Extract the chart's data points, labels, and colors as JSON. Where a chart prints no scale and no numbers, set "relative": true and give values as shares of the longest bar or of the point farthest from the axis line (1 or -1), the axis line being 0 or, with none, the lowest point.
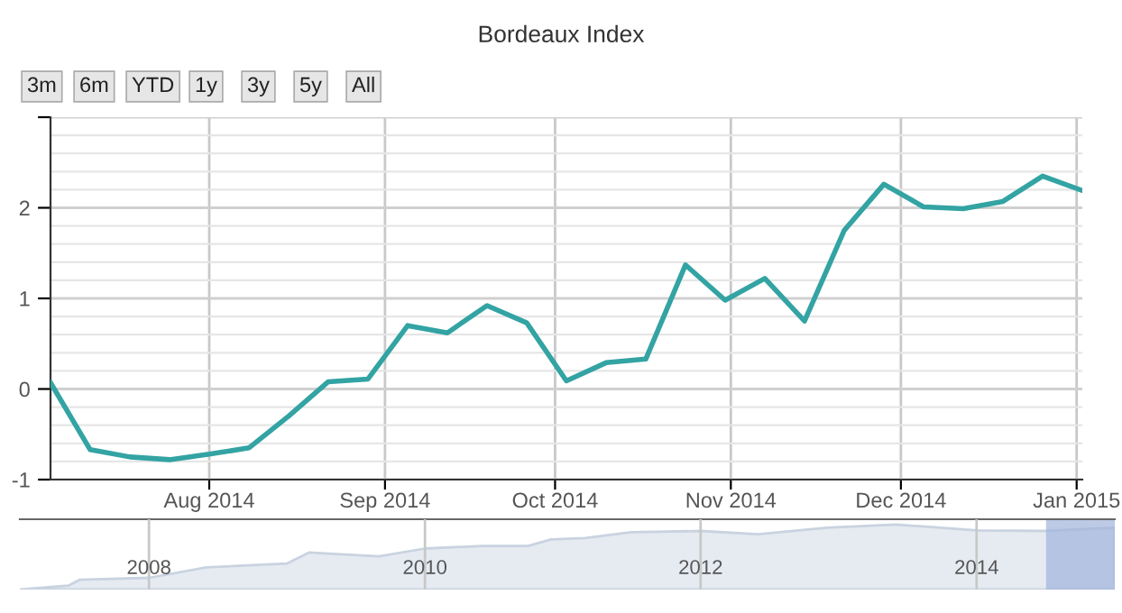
{
  "chart_data": [
    {
      "type": "line",
      "title": "Bordeaux Index",
      "annotations": [
        "3m",
        "6m",
        "YTD",
        "1y",
        "3y",
        "5y",
        "All"
      ],
      "x": [
        "2014-07-04",
        "2014-07-11",
        "2014-07-18",
        "2014-07-25",
        "2014-08-01",
        "2014-08-08",
        "2014-08-15",
        "2014-08-22",
        "2014-08-29",
        "2014-09-05",
        "2014-09-12",
        "2014-09-19",
        "2014-09-26",
        "2014-10-03",
        "2014-10-10",
        "2014-10-17",
        "2014-10-24",
        "2014-10-31",
        "2014-11-07",
        "2014-11-14",
        "2014-11-21",
        "2014-11-28",
        "2014-12-05",
        "2014-12-12",
        "2014-12-19",
        "2014-12-26",
        "2015-01-02"
      ],
      "series": [
        {
          "color": "#33a3a3",
          "values": [
            0.07,
            -0.67,
            -0.75,
            -0.78,
            -0.72,
            -0.65,
            -0.3,
            0.08,
            0.11,
            0.7,
            0.62,
            0.92,
            0.73,
            0.09,
            0.29,
            0.33,
            1.37,
            0.98,
            1.22,
            0.75,
            1.75,
            2.26,
            2.01,
            1.99,
            2.07,
            2.35,
            2.19
          ]
        }
      ],
      "xlim": [
        "2014-07-04",
        "2015-01-02"
      ],
      "xticks": [
        {
          "value": "2014-08-01",
          "label": "Aug 2014"
        },
        {
          "value": "2014-09-01",
          "label": "Sep 2014"
        },
        {
          "value": "2014-10-01",
          "label": "Oct 2014"
        },
        {
          "value": "2014-11-01",
          "label": "Nov 2014"
        },
        {
          "value": "2014-12-01",
          "label": "Dec 2014"
        },
        {
          "value": "2015-01-01",
          "label": "Jan 2015"
        }
      ],
      "ylim": [
        -1,
        3
      ],
      "yticks": [
        -1,
        0,
        1,
        2,
        {
          "value": 3,
          "label": null
        }
      ],
      "grid": true,
      "marker": "none",
      "line_style": "solid"
    },
    {
      "type": "area",
      "relative": true,
      "x": [
        "2007-01-24",
        "2007-06-01",
        "2007-07-01",
        "2008-01-01",
        "2008-06-01",
        "2009-01-01",
        "2009-03-01",
        "2009-05-01",
        "2009-09-01",
        "2010-01-01",
        "2010-06-01",
        "2010-10-01",
        "2010-12-01",
        "2011-03-01",
        "2011-07-01",
        "2012-01-01",
        "2012-06-01",
        "2012-12-01",
        "2013-06-01",
        "2014-01-01",
        "2014-07-01",
        "2015-01-02"
      ],
      "series": [
        {
          "color": "#e6ebf2",
          "values": [
            0,
            0.06,
            0.15,
            0.18,
            0.34,
            0.4,
            0.57,
            0.55,
            0.51,
            0.63,
            0.67,
            0.67,
            0.77,
            0.79,
            0.88,
            0.9,
            0.85,
            0.95,
            1.0,
            0.91,
            0.9,
            0.95
          ]
        }
      ],
      "xlim": [
        "2007-01-24",
        "2015-01-02"
      ],
      "xticks": [
        {
          "value": "2008-01-01",
          "label": "2008"
        },
        {
          "value": "2010-01-01",
          "label": "2010"
        },
        {
          "value": "2012-01-01",
          "label": "2012"
        },
        {
          "value": "2014-01-01",
          "label": "2014"
        }
      ],
      "bands": [
        {
          "axis": "x",
          "from": "2014-07-04",
          "to": "2015-01-02",
          "color": "#9fb4dc"
        }
      ],
      "grid": "x"
    }
  ]
}
